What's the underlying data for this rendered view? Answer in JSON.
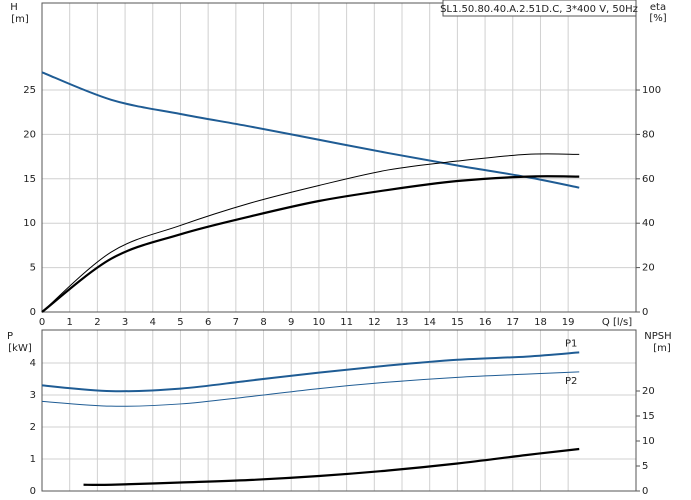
{
  "chart_data": [
    {
      "type": "line",
      "ylabel": "H",
      "ylabel_unit": "[m]",
      "y2label": "eta",
      "y2label_unit": "[%]",
      "title": "SL1.50.80.40.A.2.51D.C, 3*400 V, 50Hz",
      "xlabel": "Q [l/s]",
      "xlim": [
        0,
        21.45
      ],
      "xticks": [
        0,
        1,
        2,
        3,
        4,
        5,
        6,
        7,
        8,
        9,
        10,
        11,
        12,
        13,
        14,
        15,
        16,
        17,
        18,
        19
      ],
      "ylim": [
        0,
        34.8
      ],
      "yticks": [
        0,
        5,
        10,
        15,
        20,
        25
      ],
      "y2lim": [
        0,
        139.2
      ],
      "y2ticks": [
        0,
        20,
        40,
        60,
        80,
        100
      ],
      "grid": true,
      "series": [
        {
          "color": "#1f5c94",
          "width": 2,
          "axis": "y",
          "x": [
            0,
            2.5,
            5,
            7.5,
            10,
            12.5,
            15,
            17.5,
            19.4
          ],
          "values": [
            27,
            23.9,
            22.3,
            20.9,
            19.4,
            17.9,
            16.5,
            15.2,
            14
          ]
        },
        {
          "color": "#000000",
          "width": 2.2,
          "axis": "y2",
          "x": [
            0,
            2.5,
            5,
            7.5,
            10,
            12.5,
            15,
            17.5,
            19.4
          ],
          "values": [
            0,
            24,
            35,
            43,
            50,
            55,
            59,
            61,
            61
          ]
        },
        {
          "color": "#000000",
          "width": 1,
          "axis": "y2",
          "x": [
            0,
            2.5,
            5,
            7.5,
            10,
            12.5,
            15,
            17.5,
            19.4
          ],
          "values": [
            0,
            27,
            39,
            49,
            57,
            64,
            68,
            71,
            71
          ]
        }
      ]
    },
    {
      "type": "line",
      "ylabel": "P",
      "ylabel_unit": "[kW]",
      "y2label": "NPSH",
      "y2label_unit": "[m]",
      "xlim": [
        0,
        21.45
      ],
      "xticks": [
        0,
        1,
        2,
        3,
        4,
        5,
        6,
        7,
        8,
        9,
        10,
        11,
        12,
        13,
        14,
        15,
        16,
        17,
        18,
        19
      ],
      "ylim": [
        0,
        5.03
      ],
      "yticks": [
        0,
        1,
        2,
        3,
        4
      ],
      "y2lim": [
        0,
        32.2
      ],
      "y2ticks": [
        0,
        5,
        10,
        15,
        20
      ],
      "grid": true,
      "series": [
        {
          "name": "P1",
          "color": "#1f5c94",
          "width": 2,
          "axis": "y",
          "x": [
            0,
            2.5,
            5,
            7.5,
            10,
            12.5,
            15,
            17.5,
            19.4
          ],
          "values": [
            3.3,
            3.12,
            3.2,
            3.45,
            3.7,
            3.92,
            4.1,
            4.2,
            4.33
          ]
        },
        {
          "name": "P2",
          "color": "#1f5c94",
          "width": 1,
          "axis": "y",
          "x": [
            0,
            2.5,
            5,
            7.5,
            10,
            12.5,
            15,
            17.5,
            19.4
          ],
          "values": [
            2.8,
            2.65,
            2.72,
            2.95,
            3.2,
            3.4,
            3.55,
            3.65,
            3.72
          ]
        },
        {
          "color": "#000000",
          "width": 2.2,
          "axis": "y2",
          "x": [
            1.5,
            2.5,
            5,
            7.5,
            10,
            12.5,
            15,
            17.5,
            19.4
          ],
          "values": [
            1.25,
            1.25,
            1.7,
            2.2,
            3.0,
            4.1,
            5.5,
            7.2,
            8.4
          ]
        }
      ]
    }
  ]
}
